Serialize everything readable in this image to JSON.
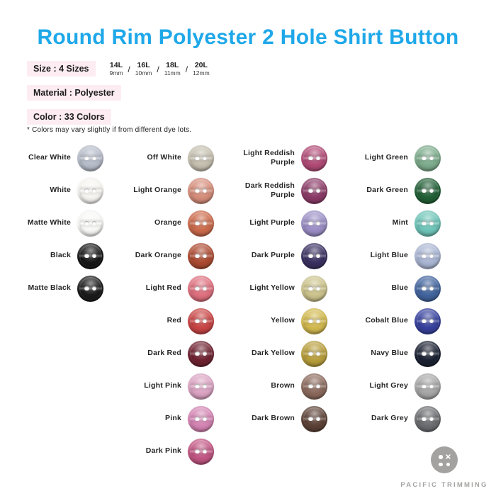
{
  "title": "Round Rim Polyester 2 Hole Shirt Button",
  "colors": {
    "accent_blue": "#1fa8e9",
    "chip_pink": "#fdedf3",
    "logo_grey": "#a3a2a0",
    "text_dark": "#1c1c1c"
  },
  "specs": {
    "size_label": "Size : 4 Sizes",
    "size_separator": "/",
    "sizes": [
      {
        "code": "14L",
        "mm": "9mm"
      },
      {
        "code": "16L",
        "mm": "10mm"
      },
      {
        "code": "18L",
        "mm": "11mm"
      },
      {
        "code": "20L",
        "mm": "12mm"
      }
    ],
    "material_label": "Material : Polyester",
    "color_label": "Color : 33 Colors",
    "note": "* Colors may vary slightly if from different dye lots."
  },
  "swatch_columns": [
    {
      "items": [
        {
          "label": "Clear White",
          "hex": "#b7bdca"
        },
        {
          "label": "White",
          "hex": "#f6f5f1"
        },
        {
          "label": "Matte White",
          "hex": "#f9f9f6"
        },
        {
          "label": "Black",
          "hex": "#161616"
        },
        {
          "label": "Matte Black",
          "hex": "#1a1a1a"
        }
      ]
    },
    {
      "items": [
        {
          "label": "Off White",
          "hex": "#c6c0b0"
        },
        {
          "label": "Light Orange",
          "hex": "#d68d7a"
        },
        {
          "label": "Orange",
          "hex": "#cc6a4b"
        },
        {
          "label": "Dark Orange",
          "hex": "#ad4a31"
        },
        {
          "label": "Light Red",
          "hex": "#df6f7e"
        },
        {
          "label": "Red",
          "hex": "#c94444"
        },
        {
          "label": "Dark Red",
          "hex": "#6f2130"
        },
        {
          "label": "Light Pink",
          "hex": "#dca4c3"
        },
        {
          "label": "Pink",
          "hex": "#d584b3"
        },
        {
          "label": "Dark Pink",
          "hex": "#c25583"
        }
      ]
    },
    {
      "items": [
        {
          "label": "Light Reddish\nPurple",
          "hex": "#b14a76"
        },
        {
          "label": "Dark Reddish\nPurple",
          "hex": "#8b3a67"
        },
        {
          "label": "Light Purple",
          "hex": "#9b8ec6"
        },
        {
          "label": "Dark Purple",
          "hex": "#3a3061"
        },
        {
          "label": "Light Yellow",
          "hex": "#ccc38c"
        },
        {
          "label": "Yellow",
          "hex": "#d2b94e"
        },
        {
          "label": "Dark Yellow",
          "hex": "#b89e3b"
        },
        {
          "label": "Brown",
          "hex": "#8b695c"
        },
        {
          "label": "Dark Brown",
          "hex": "#5c4136"
        }
      ]
    },
    {
      "items": [
        {
          "label": "Light Green",
          "hex": "#7dac8c"
        },
        {
          "label": "Dark Green",
          "hex": "#215f36"
        },
        {
          "label": "Mint",
          "hex": "#6ec5b9"
        },
        {
          "label": "Light Blue",
          "hex": "#aab6d3"
        },
        {
          "label": "Blue",
          "hex": "#41649e"
        },
        {
          "label": "Cobalt Blue",
          "hex": "#36419e"
        },
        {
          "label": "Navy Blue",
          "hex": "#1a2132"
        },
        {
          "label": "Light Grey",
          "hex": "#a7a7a7"
        },
        {
          "label": "Dark Grey",
          "hex": "#6b6d70"
        }
      ]
    }
  ],
  "footer": {
    "brand": "PACIFIC TRIMMING"
  }
}
